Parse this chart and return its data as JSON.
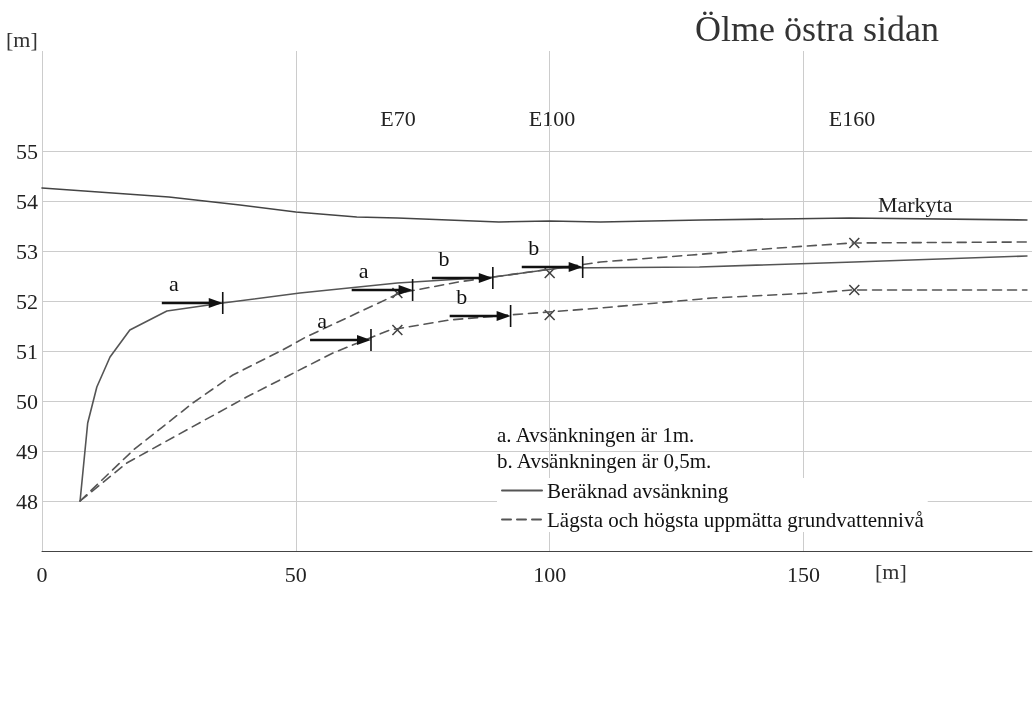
{
  "chart_data": {
    "type": "line",
    "title": "Ölme östra sidan",
    "xlabel": "[m]",
    "ylabel": "[m]",
    "xlim": [
      0,
      195
    ],
    "xticks": [
      0,
      50,
      100,
      150
    ],
    "ylim": [
      47,
      57
    ],
    "yticks": [
      48,
      49,
      50,
      51,
      52,
      53,
      54,
      55
    ],
    "grid": true,
    "legend": "bottom right",
    "marker": "none",
    "series": [
      {
        "color": "#444444",
        "line_style": "solid",
        "x": [
          0,
          25,
          39,
          50,
          62,
          70,
          80,
          90,
          100,
          110,
          130,
          159,
          194
        ],
        "values": [
          54.26,
          54.08,
          53.92,
          53.78,
          53.68,
          53.66,
          53.62,
          53.58,
          53.6,
          53.58,
          53.62,
          53.66,
          53.62
        ]
      },
      {
        "name": "Beräknad avsänkning",
        "color": "#555555",
        "line_style": "solid",
        "x": [
          7.5,
          9,
          10.8,
          13.4,
          17.3,
          24.6,
          35.6,
          50.8,
          70,
          88.8,
          102,
          129.5,
          160,
          194
        ],
        "values": [
          48,
          49.56,
          50.28,
          50.88,
          51.42,
          51.8,
          51.96,
          52.16,
          52.36,
          52.48,
          52.66,
          52.68,
          52.78,
          52.9
        ]
      },
      {
        "name": "Lägsta och högsta uppmätta grundvattennivå",
        "color": "#555555",
        "line_style": "dashed",
        "x": [
          7.5,
          18,
          29.7,
          37.6,
          47.4,
          52,
          60,
          70.5,
          82,
          96,
          110,
          128,
          145,
          159.4,
          194
        ],
        "values": [
          48,
          49.02,
          49.96,
          50.52,
          51.02,
          51.28,
          51.66,
          52.16,
          52.38,
          52.58,
          52.78,
          52.92,
          53.06,
          53.16,
          53.18
        ]
      },
      {
        "color": "#555555",
        "line_style": "dashed",
        "x": [
          7.5,
          16.7,
          31,
          40.3,
          48.8,
          57.3,
          68.5,
          80.3,
          92,
          110,
          132,
          151.8,
          159.4,
          194
        ],
        "values": [
          48,
          48.76,
          49.56,
          50.08,
          50.52,
          50.96,
          51.42,
          51.62,
          51.72,
          51.86,
          52.06,
          52.16,
          52.22,
          52.22
        ]
      },
      {
        "type": "scatter",
        "marker": "cross",
        "color": "#111111",
        "x": [
          70,
          100,
          160,
          70,
          100,
          160
        ],
        "values": [
          52.16,
          52.56,
          53.16,
          51.42,
          51.72,
          52.22
        ]
      }
    ],
    "annotations": [
      "a. Avsänkningen är 1m.",
      "b. Avsänkningen är 0,5m.",
      "E70",
      "E100",
      "E160",
      {
        "text": "Markyta",
        "x": 172,
        "y": 53.66
      },
      {
        "text": "a",
        "x": 35.6,
        "y": 51.96
      },
      {
        "text": "a",
        "x": 73,
        "y": 52.22
      },
      {
        "text": "a",
        "x": 64.8,
        "y": 51.22
      },
      {
        "text": "b",
        "x": 88.8,
        "y": 52.46
      },
      {
        "text": "b",
        "x": 106.5,
        "y": 52.68
      },
      {
        "text": "b",
        "x": 92.3,
        "y": 51.7
      }
    ]
  }
}
